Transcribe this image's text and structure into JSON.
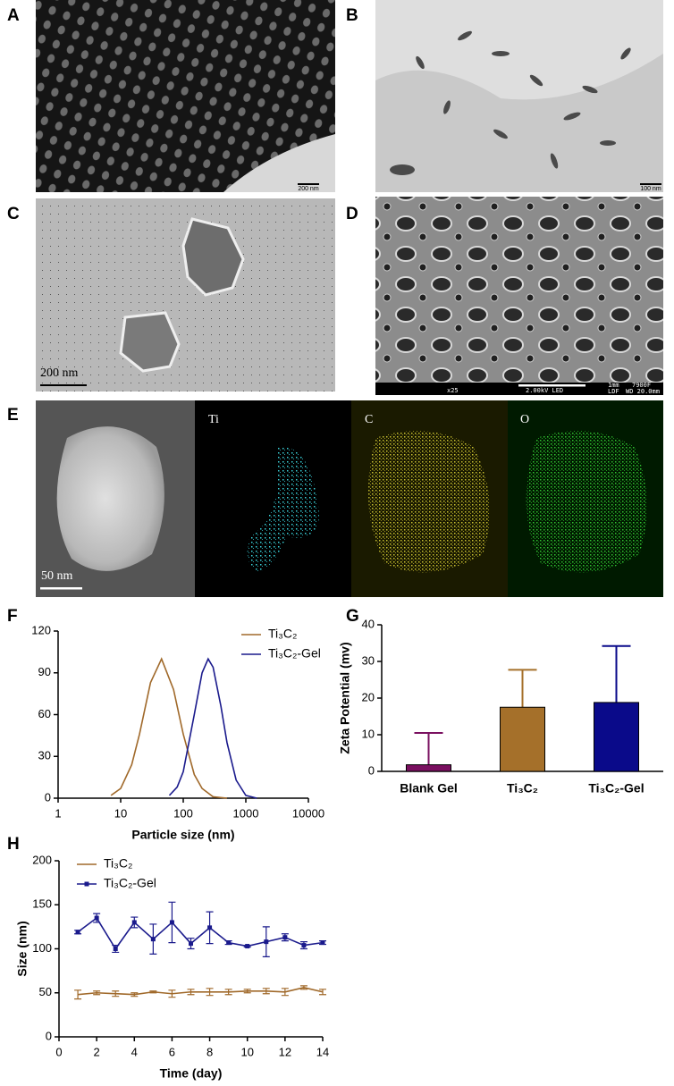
{
  "panel_labels": [
    "A",
    "B",
    "C",
    "D",
    "E",
    "F",
    "G",
    "H"
  ],
  "images": {
    "A": {
      "scale": "200 nm"
    },
    "B": {
      "scale": "100 nm"
    },
    "C": {
      "scale": "200 nm"
    },
    "D": {
      "info": [
        "x25",
        "2.00kV LED",
        "1mm",
        "7900F",
        "LDF",
        "WD 20.0mm"
      ]
    },
    "E": {
      "scale": "50 nm",
      "maps": [
        "Ti",
        "C",
        "O"
      ]
    }
  },
  "chart_data": [
    {
      "type": "line",
      "xscale": "log",
      "xlabel": "Particle size (nm)",
      "xlim": [
        1,
        10000
      ],
      "xticks": [
        1,
        10,
        100,
        1000,
        10000
      ],
      "ylim": [
        0,
        120
      ],
      "yticks": [
        0,
        30,
        60,
        90,
        120
      ],
      "legend": "upper right",
      "series": [
        {
          "name": "Ti₃C₂",
          "color": "#a0692a",
          "x": [
            7,
            10,
            15,
            20,
            30,
            45,
            70,
            100,
            150,
            200,
            300,
            500
          ],
          "values": [
            2,
            7,
            24,
            46,
            83,
            100,
            78,
            46,
            17,
            7,
            1,
            0
          ]
        },
        {
          "name": "Ti₃C₂-Gel",
          "color": "#1a1a8c",
          "x": [
            60,
            80,
            100,
            150,
            200,
            250,
            300,
            400,
            500,
            700,
            1000,
            1500
          ],
          "values": [
            2,
            8,
            19,
            60,
            90,
            100,
            94,
            66,
            40,
            13,
            2,
            0
          ]
        }
      ]
    },
    {
      "type": "bar",
      "ylabel": "Zeta Potential (mv)",
      "categories": [
        "Blank Gel",
        "Ti₃C₂",
        "Ti₃C₂-Gel"
      ],
      "values": [
        1.8,
        17.5,
        18.8
      ],
      "errors": [
        8.7,
        10.2,
        15.4
      ],
      "colors": [
        "#7a1060",
        "#a5702a",
        "#0a0a8a"
      ],
      "ylim": [
        0,
        40
      ],
      "yticks": [
        0,
        10,
        20,
        30,
        40
      ]
    },
    {
      "type": "line",
      "xlabel": "Time (day)",
      "ylabel": "Size (nm)",
      "x": [
        1,
        2,
        3,
        4,
        5,
        6,
        7,
        8,
        9,
        10,
        11,
        12,
        13,
        14
      ],
      "xlim": [
        0,
        14
      ],
      "xticks": [
        0,
        2,
        4,
        6,
        8,
        10,
        12,
        14
      ],
      "ylim": [
        0,
        200
      ],
      "yticks": [
        0,
        50,
        100,
        150,
        200
      ],
      "legend": "upper left",
      "series": [
        {
          "name": "Ti₃C₂",
          "color": "#a0692a",
          "values": [
            48,
            50,
            49,
            48,
            51,
            49,
            51,
            51,
            51,
            52,
            52,
            51,
            56,
            51
          ],
          "errors": [
            5,
            2,
            3,
            2,
            1,
            4,
            3,
            4,
            3,
            2,
            3,
            4,
            2,
            3
          ]
        },
        {
          "name": "Ti₃C₂-Gel",
          "color": "#1a1a8c",
          "marker": "square",
          "values": [
            119,
            135,
            100,
            130,
            111,
            130,
            106,
            124,
            107,
            103,
            108,
            113,
            104,
            107
          ],
          "errors": [
            2,
            5,
            4,
            6,
            17,
            23,
            6,
            18,
            2,
            1,
            17,
            4,
            4,
            2
          ]
        }
      ]
    }
  ]
}
